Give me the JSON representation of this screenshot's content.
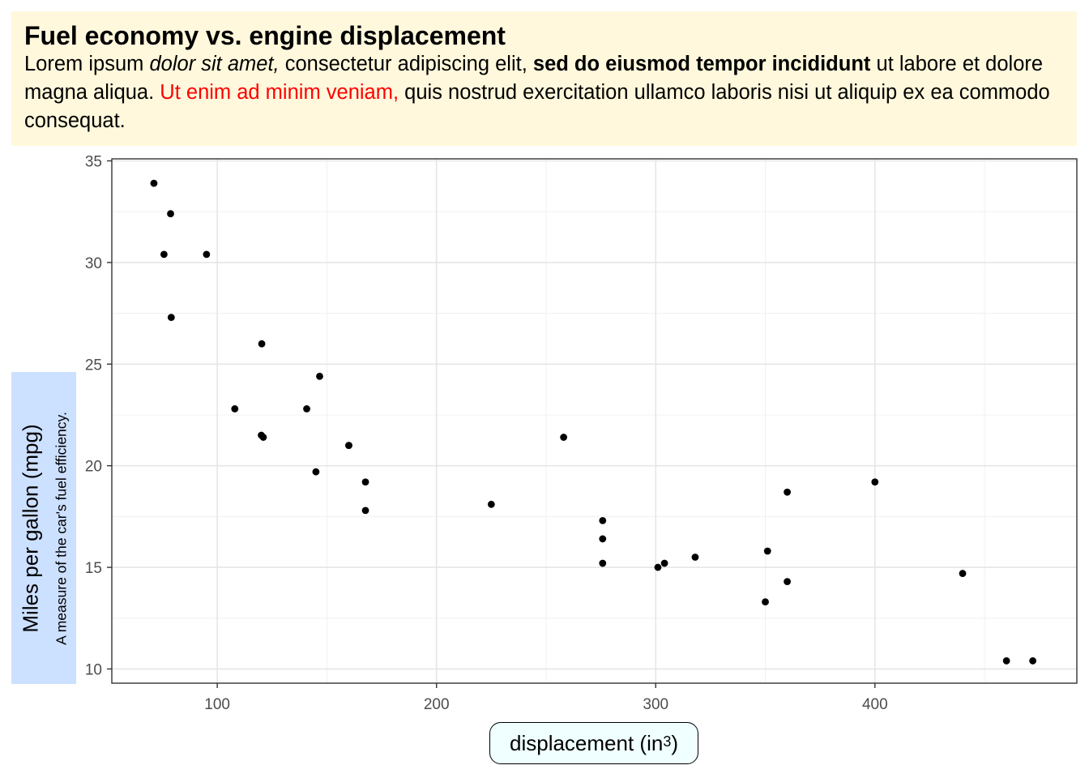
{
  "header": {
    "title": "Fuel economy vs. engine displacement",
    "subtitle_parts": [
      {
        "text": "Lorem ipsum ",
        "style": "normal"
      },
      {
        "text": "dolor sit amet,",
        "style": "italic"
      },
      {
        "text": " consectetur adipiscing elit, ",
        "style": "normal"
      },
      {
        "text": "sed do eiusmod tempor incididunt",
        "style": "bold"
      },
      {
        "text": " ut labore et dolore magna aliqua. ",
        "style": "normal"
      },
      {
        "text": "Ut enim ad minim veniam,",
        "style": "red"
      },
      {
        "text": " quis nostrud exercitation ullamco laboris nisi ut aliquip ex ea commodo consequat.",
        "style": "normal"
      }
    ],
    "background": "#fff8dc"
  },
  "axes": {
    "ylabel": "Miles per gallon (mpg)",
    "ylabel_sub": "A measure of the car's fuel efficiency.",
    "ylabel_background": "#cce0ff",
    "xlabel": "displacement (in",
    "xlabel_superscript": "3",
    "xlabel_suffix": ")",
    "xlabel_background": "#f0ffff"
  },
  "chart_data": {
    "type": "scatter",
    "title": "Fuel economy vs. engine displacement",
    "xlabel": "displacement (in3)",
    "ylabel": "Miles per gallon (mpg)",
    "xlim": [
      51.9,
      492.1
    ],
    "ylim": [
      9.3,
      35.1
    ],
    "x_ticks": [
      100,
      200,
      300,
      400
    ],
    "y_ticks": [
      10,
      15,
      20,
      25,
      30,
      35
    ],
    "grid": true,
    "point_color": "#000000",
    "x": [
      160,
      160,
      108,
      258,
      360,
      225,
      360,
      146.7,
      140.8,
      167.6,
      167.6,
      275.8,
      275.8,
      275.8,
      472,
      460,
      440,
      78.7,
      75.7,
      71.1,
      120.1,
      318,
      304,
      350,
      400,
      79,
      120.3,
      95.1,
      351,
      145,
      301,
      121
    ],
    "y": [
      21,
      21,
      22.8,
      21.4,
      18.7,
      18.1,
      14.3,
      24.4,
      22.8,
      19.2,
      17.8,
      16.4,
      17.3,
      15.2,
      10.4,
      10.4,
      14.7,
      32.4,
      30.4,
      33.9,
      21.5,
      15.5,
      15.2,
      13.3,
      19.2,
      27.3,
      26,
      30.4,
      15.8,
      19.7,
      15,
      21.4
    ]
  }
}
